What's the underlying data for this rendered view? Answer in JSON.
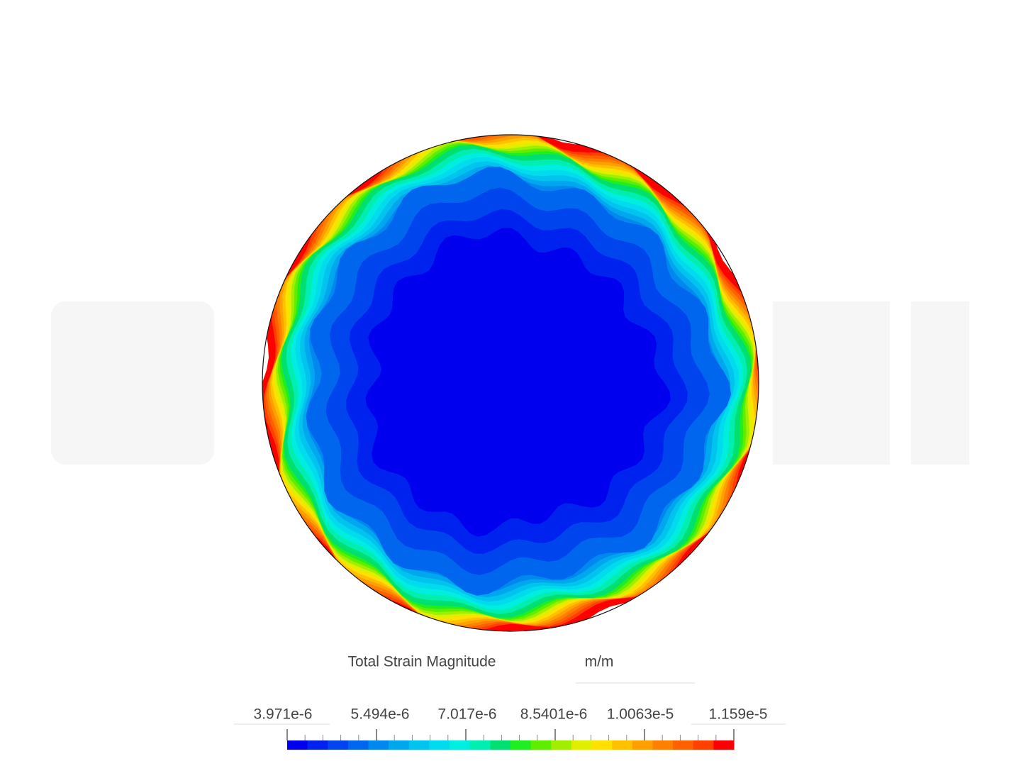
{
  "legend": {
    "title": "Total Strain Magnitude",
    "unit": "m/m",
    "labels": [
      "3.971e-6",
      "5.494e-6",
      "7.017e-6",
      "8.5401e-6",
      "1.0063e-5",
      "1.159e-5"
    ],
    "colors": [
      "#0000ee",
      "#0022ee",
      "#0044ee",
      "#0066ee",
      "#0088ee",
      "#00a6ee",
      "#00c4ee",
      "#00dcee",
      "#00eee0",
      "#00eeb0",
      "#00e070",
      "#20ee20",
      "#60ee00",
      "#a0ee00",
      "#e0ee00",
      "#ffe000",
      "#ffc000",
      "#ffa000",
      "#ff8000",
      "#ff6000",
      "#ff4000",
      "#ff0000"
    ]
  }
}
